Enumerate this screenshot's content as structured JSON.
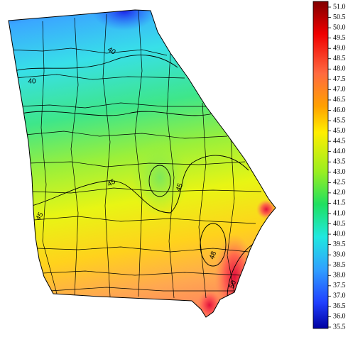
{
  "map": {
    "contour_labels": [
      "40",
      "40",
      "45",
      "45",
      "45",
      "48",
      "50"
    ],
    "colorbar": {
      "range": [
        35.5,
        51.0
      ],
      "ticks": [
        {
          "value": 51,
          "label": "51.0"
        },
        50.5,
        {
          "value": 50,
          "label": "50.0"
        },
        49.5,
        {
          "value": 49,
          "label": "49.0"
        },
        48.5,
        {
          "value": 48,
          "label": "48.0"
        },
        47.5,
        {
          "value": 47,
          "label": "47.0"
        },
        46.5,
        {
          "value": 46,
          "label": "46.0"
        },
        45.5,
        {
          "value": 45,
          "label": "45.0"
        },
        44.5,
        {
          "value": 44,
          "label": "44.0"
        },
        43.5,
        {
          "value": 43,
          "label": "43.0"
        },
        42.5,
        {
          "value": 42,
          "label": "42.0"
        },
        41.5,
        {
          "value": 41,
          "label": "41.0"
        },
        40.5,
        {
          "value": 40,
          "label": "40.0"
        },
        39.5,
        {
          "value": 39,
          "label": "39.0"
        },
        38.5,
        {
          "value": 38,
          "label": "38.0"
        },
        37.5,
        {
          "value": 37,
          "label": "37.0"
        },
        36.5,
        {
          "value": 36,
          "label": "36.0"
        },
        35.5
      ]
    }
  }
}
